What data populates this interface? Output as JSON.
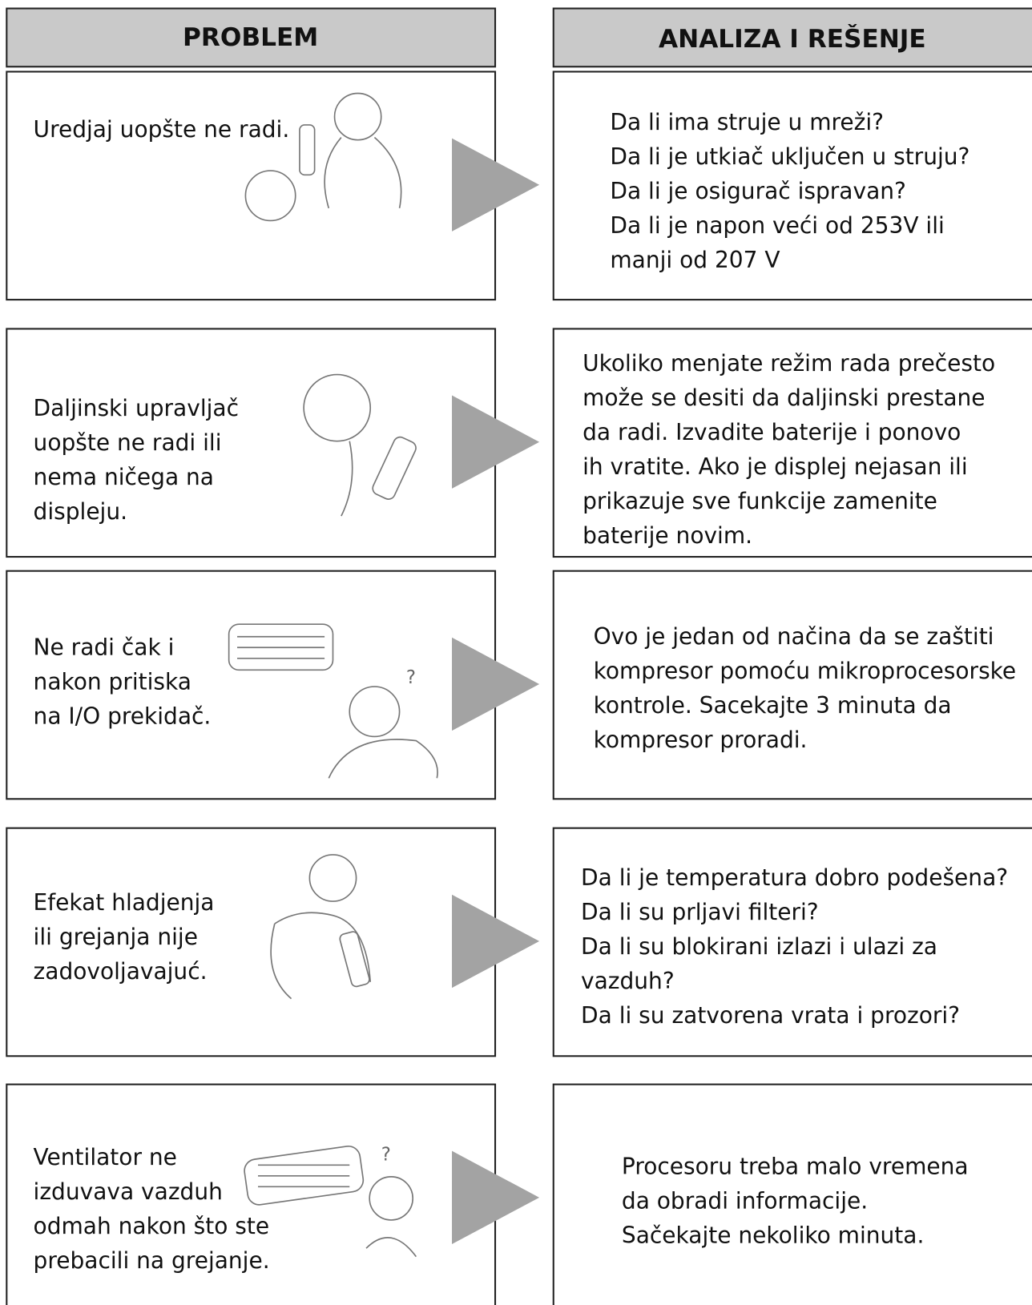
{
  "header": {
    "problem": "PROBLEM",
    "solution": "ANALIZA I REŠENJE"
  },
  "rows": [
    {
      "problem": [
        "Uredjaj uopšte ne radi."
      ],
      "solution": [
        "Da li ima struje u mreži?",
        "Da li je utkiač uključen u struju?",
        "Da li je osigurač ispravan?",
        "Da li je napon veći od 253V ili",
        "manji od 207 V"
      ]
    },
    {
      "problem": [
        "Daljinski upravljač",
        "uopšte ne radi ili",
        "nema ničega na",
        "displeju."
      ],
      "solution": [
        "Ukoliko menjate režim rada prečesto",
        "može se desiti da daljinski prestane",
        "da radi. Izvadite baterije  i ponovo",
        "ih vratite. Ako  je displej nejasan ili",
        "prikazuje sve funkcije zamenite",
        "baterije novim."
      ]
    },
    {
      "problem": [
        "Ne radi čak i",
        "nakon pritiska",
        "na I/O prekidač."
      ],
      "solution": [
        "Ovo je  jedan od načina da se zaštiti",
        "kompresor pomoću mikroprocesorske",
        "kontrole. Sacekajte  3 minuta da",
        "kompresor proradi."
      ]
    },
    {
      "problem": [
        "Efekat hladjenja",
        "ili grejanja nije",
        "zadovoljavajuć."
      ],
      "solution": [
        "Da li je temperatura dobro podešena?",
        "Da li su prljavi filteri?",
        "Da li su blokirani izlazi i ulazi za",
        "vazduh?",
        "Da li su zatvorena vrata i prozori?"
      ]
    },
    {
      "problem": [
        "Ventilator ne",
        "izduvava vazduh",
        "odmah nakon što ste",
        "prebacili na grejanje."
      ],
      "solution": [
        "Procesoru treba malo vremena",
        "da obradi informacije.",
        "Sačekajte nekoliko minuta."
      ]
    }
  ]
}
